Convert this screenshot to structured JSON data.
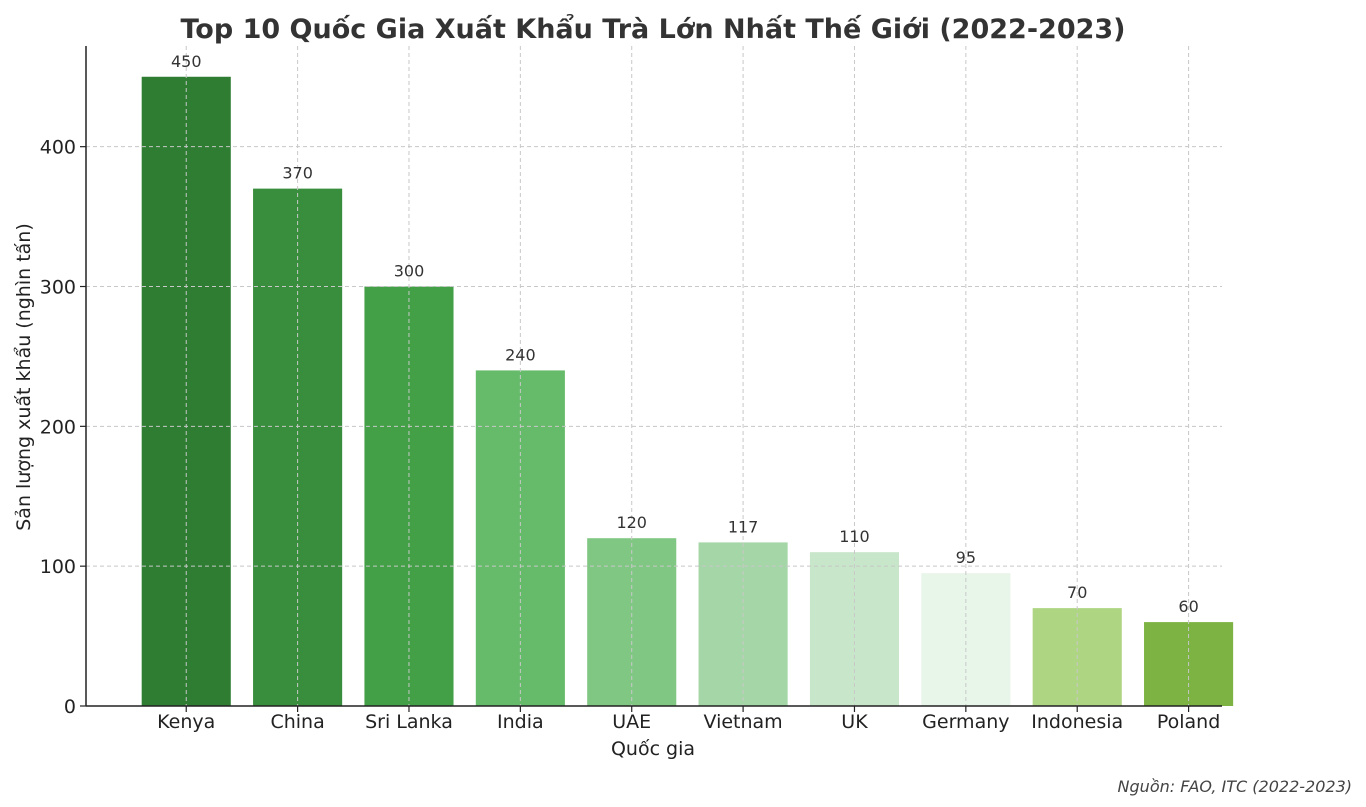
{
  "chart_data": {
    "type": "bar",
    "title": "Top 10 Quốc Gia Xuất Khẩu Trà Lớn Nhất Thế Giới (2022-2023)",
    "xlabel": "Quốc gia",
    "ylabel": "Sản lượng xuất khẩu (nghìn tấn)",
    "categories": [
      "Kenya",
      "China",
      "Sri Lanka",
      "India",
      "UAE",
      "Vietnam",
      "UK",
      "Germany",
      "Indonesia",
      "Poland"
    ],
    "values": [
      450,
      370,
      300,
      240,
      120,
      117,
      110,
      95,
      70,
      60
    ],
    "value_labels": [
      "450",
      "370",
      "300",
      "240",
      "120",
      "117",
      "110",
      "95",
      "70",
      "60"
    ],
    "colors": [
      "#2e7d32",
      "#388e3c",
      "#43a047",
      "#66bb6a",
      "#81c784",
      "#a5d6a7",
      "#c8e6c9",
      "#e8f5e9",
      "#aed581",
      "#7cb342"
    ],
    "ylim": [
      0,
      472
    ],
    "yticks": [
      0,
      100,
      200,
      300,
      400
    ],
    "ytick_labels": [
      "0",
      "100",
      "200",
      "300",
      "400"
    ],
    "grid": true,
    "source_note": "Nguồn: FAO, ITC (2022-2023)"
  }
}
